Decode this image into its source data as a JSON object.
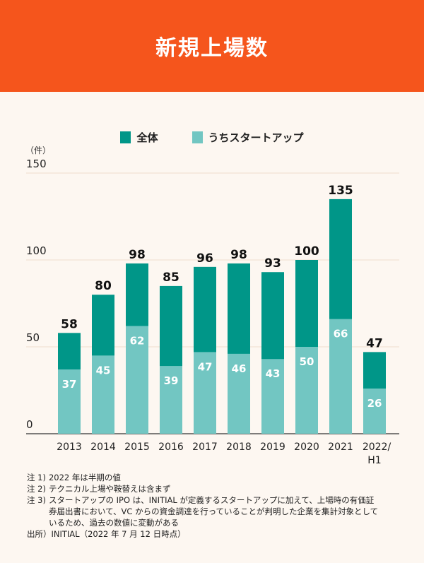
{
  "title": "新規上場数",
  "colors": {
    "header": "#f5551c",
    "total": "#009688",
    "startup": "#72c6c2",
    "grid": "#f0dccd"
  },
  "chart_data": {
    "type": "bar",
    "ylabel": "（件）",
    "ylim": [
      0,
      150
    ],
    "yticks": [
      0,
      50,
      100,
      150
    ],
    "grid": true,
    "legend_position": "top-center",
    "categories": [
      "2013",
      "2014",
      "2015",
      "2016",
      "2017",
      "2018",
      "2019",
      "2020",
      "2021",
      "2022/H1"
    ],
    "series": [
      {
        "name": "全体",
        "values": [
          58,
          80,
          98,
          85,
          96,
          98,
          93,
          100,
          135,
          47
        ]
      },
      {
        "name": "うちスタートアップ",
        "values": [
          37,
          45,
          62,
          39,
          47,
          46,
          43,
          50,
          66,
          26
        ]
      }
    ]
  },
  "notes": [
    {
      "prefix": "注 1)",
      "text": "2022 年は半期の値"
    },
    {
      "prefix": "注 2)",
      "text": "テクニカル上場や鞍替えは含まず"
    },
    {
      "prefix": "注 3)",
      "text": "スタートアップの IPO は、INITIAL が定義するスタートアップに加えて、上場時の有価証券届出書において、VC からの資金調達を行っていることが判明した企業を集計対象としているため、過去の数値に変動がある"
    }
  ],
  "source": "出所）INITIAL（2022 年 7 月 12 日時点）"
}
